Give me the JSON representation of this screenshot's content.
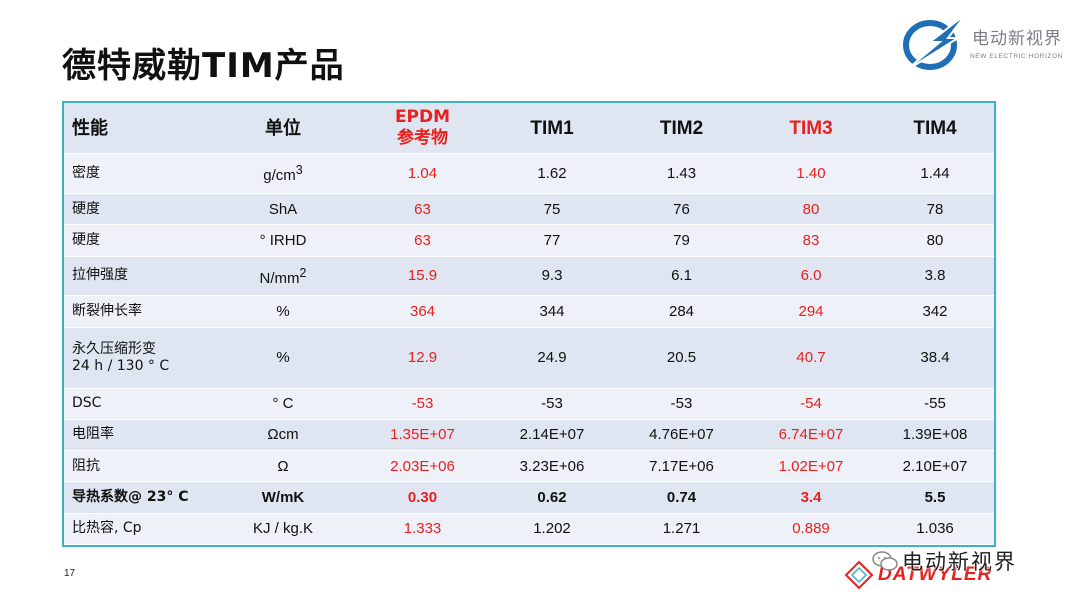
{
  "slide": {
    "title": "德特威勒TIM产品",
    "page_number": "17"
  },
  "logo": {
    "name_cn": "电动新视界",
    "name_en": "NEW ELECTRIC HORIZON"
  },
  "footer": {
    "brand": "DATWYLER",
    "watermark": "电动新视界"
  },
  "colors": {
    "highlight": "#e8201f",
    "border": "#3bb3c3",
    "row_dark": "#dfe6f1",
    "row_light": "#eef1f7"
  },
  "table": {
    "headers": [
      "性能",
      "单位",
      "EPDM参考物",
      "TIM1",
      "TIM2",
      "TIM3",
      "TIM4"
    ],
    "header_epdm_lines": [
      "EPDM",
      "参考物"
    ],
    "rows": [
      {
        "property": "密度",
        "unit_base": "g/cm",
        "unit_sup": "3",
        "values": [
          "1.04",
          "1.62",
          "1.43",
          "1.40",
          "1.44"
        ]
      },
      {
        "property": "硬度",
        "unit": "ShA",
        "values": [
          "63",
          "75",
          "76",
          "80",
          "78"
        ]
      },
      {
        "property": "硬度",
        "unit": "° IRHD",
        "values": [
          "63",
          "77",
          "79",
          "83",
          "80"
        ]
      },
      {
        "property": "拉伸强度",
        "unit_base": "N/mm",
        "unit_sup": "2",
        "values": [
          "15.9",
          "9.3",
          "6.1",
          "6.0",
          "3.8"
        ]
      },
      {
        "property": "断裂伸长率",
        "unit": "%",
        "values": [
          "364",
          "344",
          "284",
          "294",
          "342"
        ]
      },
      {
        "property_line1": "永久压缩形变",
        "property_line2": "24 h / 130 ° C",
        "unit": "%",
        "values": [
          "12.9",
          "24.9",
          "20.5",
          "40.7",
          "38.4"
        ]
      },
      {
        "property": "DSC",
        "unit": "° C",
        "values": [
          "-53",
          "-53",
          "-53",
          "-54",
          "-55"
        ]
      },
      {
        "property": "电阻率",
        "unit": "Ωcm",
        "values": [
          "1.35E+07",
          "2.14E+07",
          "4.76E+07",
          "6.74E+07",
          "1.39E+08"
        ]
      },
      {
        "property": "阻抗",
        "unit": "Ω",
        "values": [
          "2.03E+06",
          "3.23E+06",
          "7.17E+06",
          "1.02E+07",
          "2.10E+07"
        ]
      },
      {
        "property": "导热系数@ 23° C",
        "unit": "W/mK",
        "values": [
          "0.30",
          "0.62",
          "0.74",
          "3.4",
          "5.5"
        ]
      },
      {
        "property": "比热容, Cp",
        "unit": "KJ / kg.K",
        "values": [
          "1.333",
          "1.202",
          "1.271",
          "0.889",
          "1.036"
        ]
      }
    ]
  }
}
